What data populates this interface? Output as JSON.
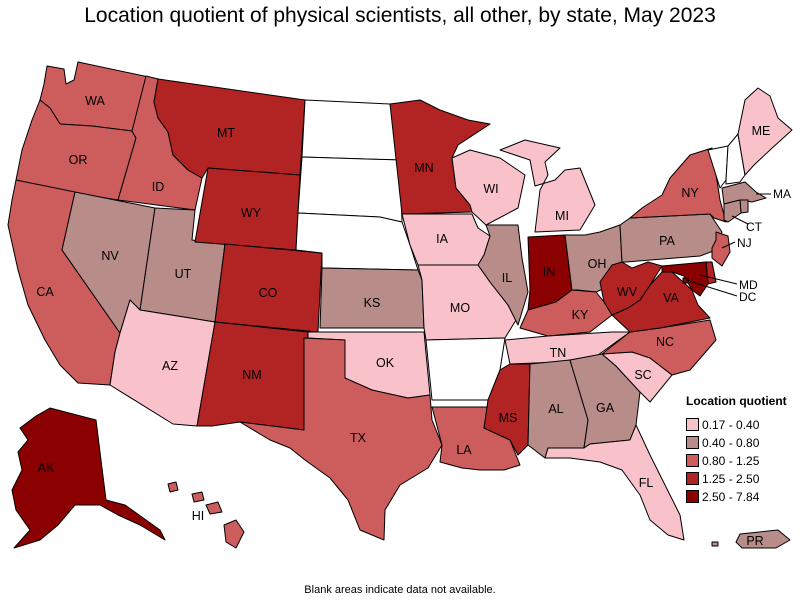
{
  "title": "Location quotient of physical scientists, all other, by state, May 2023",
  "footnote": "Blank areas indicate data not available.",
  "colors": {
    "q1": "#f9c2cb",
    "q2": "#b88c89",
    "q3": "#cd5c5c",
    "q4": "#b22323",
    "q5": "#8b0000",
    "na": "#ffffff"
  },
  "legend": {
    "title": "Location quotient",
    "items": [
      {
        "label": "0.17 - 0.40",
        "class": "q1"
      },
      {
        "label": "0.40 - 0.80",
        "class": "q2"
      },
      {
        "label": "0.80 - 1.25",
        "class": "q3"
      },
      {
        "label": "1.25 - 2.50",
        "class": "q4"
      },
      {
        "label": "2.50 - 7.84",
        "class": "q5"
      }
    ]
  },
  "states": {
    "WA": {
      "label": "WA",
      "class": "q3"
    },
    "OR": {
      "label": "OR",
      "class": "q3"
    },
    "CA": {
      "label": "CA",
      "class": "q3"
    },
    "ID": {
      "label": "ID",
      "class": "q3"
    },
    "NV": {
      "label": "NV",
      "class": "q2"
    },
    "UT": {
      "label": "UT",
      "class": "q2"
    },
    "AZ": {
      "label": "AZ",
      "class": "q1"
    },
    "MT": {
      "label": "MT",
      "class": "q4"
    },
    "WY": {
      "label": "WY",
      "class": "q4"
    },
    "CO": {
      "label": "CO",
      "class": "q4"
    },
    "NM": {
      "label": "NM",
      "class": "q4"
    },
    "ND": {
      "label": "",
      "class": "na"
    },
    "SD": {
      "label": "",
      "class": "na"
    },
    "NE": {
      "label": "",
      "class": "na"
    },
    "KS": {
      "label": "KS",
      "class": "q2"
    },
    "OK": {
      "label": "OK",
      "class": "q1"
    },
    "TX": {
      "label": "TX",
      "class": "q3"
    },
    "MN": {
      "label": "MN",
      "class": "q4"
    },
    "IA": {
      "label": "IA",
      "class": "q1"
    },
    "MO": {
      "label": "MO",
      "class": "q1"
    },
    "AR": {
      "label": "",
      "class": "na"
    },
    "LA": {
      "label": "LA",
      "class": "q3"
    },
    "WI": {
      "label": "WI",
      "class": "q1"
    },
    "IL": {
      "label": "IL",
      "class": "q2"
    },
    "MI": {
      "label": "MI",
      "class": "q1"
    },
    "IN": {
      "label": "IN",
      "class": "q5"
    },
    "OH": {
      "label": "OH",
      "class": "q2"
    },
    "KY": {
      "label": "KY",
      "class": "q3"
    },
    "TN": {
      "label": "TN",
      "class": "q1"
    },
    "MS": {
      "label": "MS",
      "class": "q4"
    },
    "AL": {
      "label": "AL",
      "class": "q2"
    },
    "GA": {
      "label": "GA",
      "class": "q2"
    },
    "FL": {
      "label": "FL",
      "class": "q1"
    },
    "SC": {
      "label": "SC",
      "class": "q1"
    },
    "NC": {
      "label": "NC",
      "class": "q3"
    },
    "VA": {
      "label": "VA",
      "class": "q4"
    },
    "WV": {
      "label": "WV",
      "class": "q4"
    },
    "PA": {
      "label": "PA",
      "class": "q2"
    },
    "NY": {
      "label": "NY",
      "class": "q3"
    },
    "VT": {
      "label": "",
      "class": "na"
    },
    "NH": {
      "label": "",
      "class": "na"
    },
    "ME": {
      "label": "ME",
      "class": "q1"
    },
    "MA": {
      "label": "MA",
      "class": "q2"
    },
    "RI": {
      "label": "",
      "class": "q2"
    },
    "CT": {
      "label": "CT",
      "class": "q2"
    },
    "NJ": {
      "label": "NJ",
      "class": "q3"
    },
    "DE": {
      "label": "",
      "class": "q4"
    },
    "MD": {
      "label": "MD",
      "class": "q5"
    },
    "DC": {
      "label": "DC",
      "class": "q5"
    },
    "AK": {
      "label": "AK",
      "class": "q5"
    },
    "HI": {
      "label": "HI",
      "class": "q3"
    },
    "PR": {
      "label": "PR",
      "class": "q2"
    }
  }
}
